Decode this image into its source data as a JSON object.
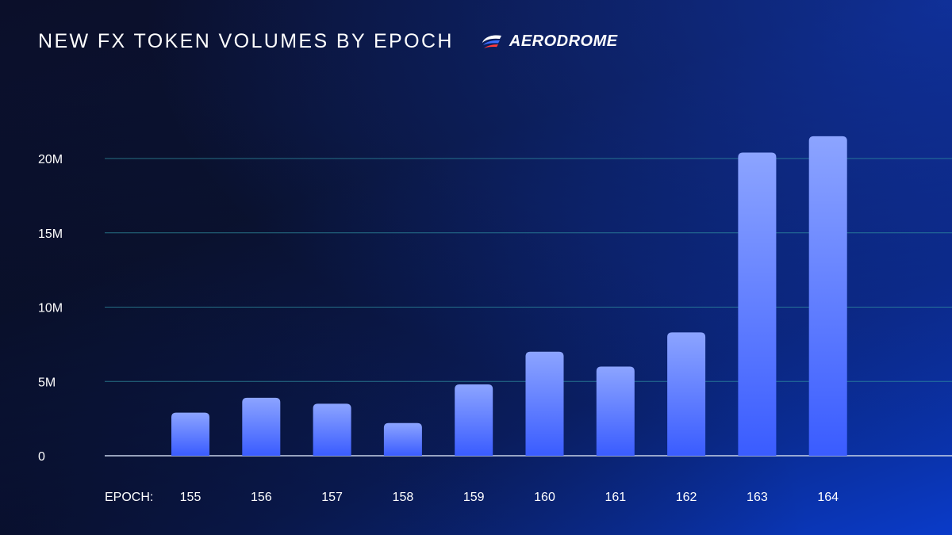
{
  "header": {
    "title": "NEW FX TOKEN VOLUMES BY EPOCH",
    "brand_name": "AERODROME",
    "brand_icon": "aerodrome-logo-icon"
  },
  "colors": {
    "bar_top": "#8ca4ff",
    "bar_bottom": "#3a5cff",
    "grid": "#2f8fa0",
    "baseline": "#c8d2e8"
  },
  "chart_data": {
    "type": "bar",
    "title": "NEW FX TOKEN VOLUMES BY EPOCH",
    "x_prefix": "EPOCH:",
    "categories": [
      "155",
      "156",
      "157",
      "158",
      "159",
      "160",
      "161",
      "162",
      "163",
      "164"
    ],
    "values": [
      2900000,
      3900000,
      3500000,
      2200000,
      4800000,
      7000000,
      6000000,
      8300000,
      20400000,
      21500000
    ],
    "ylim": [
      0,
      20000000
    ],
    "yticks": [
      {
        "value": 0,
        "label": "0"
      },
      {
        "value": 5000000,
        "label": "5M"
      },
      {
        "value": 10000000,
        "label": "10M"
      },
      {
        "value": 15000000,
        "label": "15M"
      },
      {
        "value": 20000000,
        "label": "20M"
      }
    ],
    "grid": true,
    "legend": "none"
  }
}
